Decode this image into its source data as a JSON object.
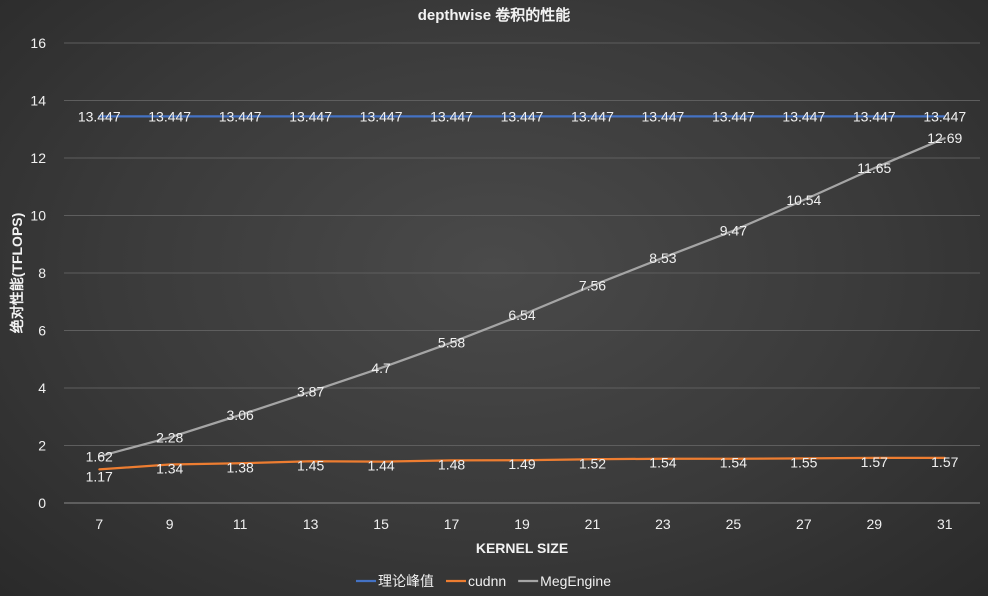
{
  "chart_data": {
    "type": "line",
    "title": "depthwise 卷积的性能",
    "xlabel": "KERNEL SIZE",
    "ylabel": "绝对性能(TFLOPS)",
    "categories": [
      "7",
      "9",
      "11",
      "13",
      "15",
      "17",
      "19",
      "21",
      "23",
      "25",
      "27",
      "29",
      "31"
    ],
    "ylim": [
      0,
      16
    ],
    "yticks": [
      0,
      2,
      4,
      6,
      8,
      10,
      12,
      14,
      16
    ],
    "grid": true,
    "legend_position": "bottom",
    "series": [
      {
        "name": "理论峰值",
        "color": "#4472c4",
        "values": [
          13.447,
          13.447,
          13.447,
          13.447,
          13.447,
          13.447,
          13.447,
          13.447,
          13.447,
          13.447,
          13.447,
          13.447,
          13.447
        ],
        "labels": [
          "13.447",
          "13.447",
          "13.447",
          "13.447",
          "13.447",
          "13.447",
          "13.447",
          "13.447",
          "13.447",
          "13.447",
          "13.447",
          "13.447",
          "13.447"
        ]
      },
      {
        "name": "cudnn",
        "color": "#ed7d31",
        "values": [
          1.17,
          1.34,
          1.38,
          1.45,
          1.44,
          1.48,
          1.49,
          1.52,
          1.54,
          1.54,
          1.55,
          1.57,
          1.57
        ],
        "labels": [
          "1.17",
          "1.34",
          "1.38",
          "1.45",
          "1.44",
          "1.48",
          "1.49",
          "1.52",
          "1.54",
          "1.54",
          "1.55",
          "1.57",
          "1.57"
        ]
      },
      {
        "name": "MegEngine",
        "color": "#a5a5a5",
        "values": [
          1.62,
          2.28,
          3.06,
          3.87,
          4.7,
          5.58,
          6.54,
          7.56,
          8.53,
          9.47,
          10.54,
          11.65,
          12.69
        ],
        "labels": [
          "1.62",
          "2.28",
          "3.06",
          "3.87",
          "4.7",
          "5.58",
          "6.54",
          "7.56",
          "8.53",
          "9.47",
          "10.54",
          "11.65",
          "12.69"
        ]
      }
    ]
  }
}
